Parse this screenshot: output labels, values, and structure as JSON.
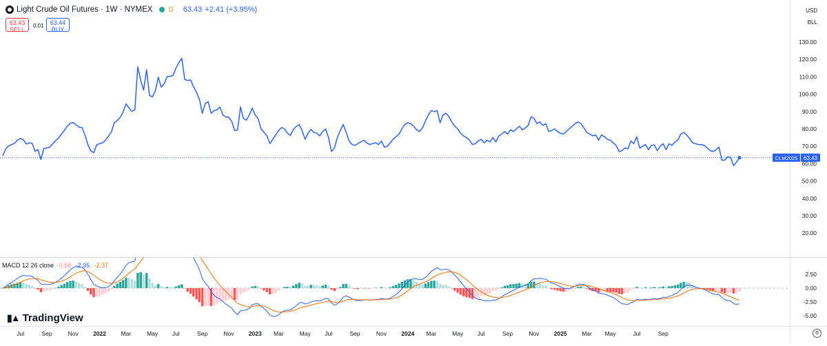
{
  "legend": {
    "title": "Light Crude Oil Futures · 1W · NYMEX",
    "d_badge": "D",
    "price": "63.43",
    "change": "+2.41 (+3.95%)"
  },
  "trade": {
    "sell_price": "63.43",
    "sell_label": "SELL",
    "spread": "0.01",
    "buy_price": "63.44",
    "buy_label": "BUY"
  },
  "top_right": {
    "currency": "USD",
    "unit": "BLL"
  },
  "macd_legend": {
    "label": "MACD 12 26 close",
    "hist": "-0.58",
    "macd": "-2.95",
    "signal": "-2.37"
  },
  "branding": {
    "name": "TradingView"
  },
  "colors": {
    "line": "#2962ff",
    "hist_up_strong": "#26a69a",
    "hist_up_weak": "#b2dfdb",
    "hist_dn_strong": "#ff5252",
    "hist_dn_weak": "#ffcdd2",
    "signal": "#ff6d00",
    "macd": "#2962ff"
  },
  "chart_data": {
    "type": "line",
    "price_axis": {
      "ticks": [
        130,
        120,
        110,
        100,
        90,
        80,
        70,
        60,
        50,
        40,
        30,
        20
      ],
      "labels": [
        "130.00",
        "120.00",
        "110.00",
        "100.00",
        "90.00",
        "80.00",
        "70.00",
        "60.00",
        "50.00",
        "40.00",
        "30.00",
        "20.00"
      ]
    },
    "time_axis": {
      "labels": [
        "Jul",
        "Sep",
        "Nov",
        "2022",
        "Mar",
        "May",
        "Jul",
        "Sep",
        "Nov",
        "2023",
        "Mar",
        "May",
        "Jul",
        "Sep",
        "Nov",
        "2024",
        "Mar",
        "May",
        "Jul",
        "Sep",
        "Nov",
        "2025",
        "Mar",
        "May",
        "Jul",
        "Sep"
      ],
      "bold": [
        "2022",
        "2023",
        "2024",
        "2025"
      ],
      "label_index": [
        6,
        15,
        24,
        33,
        42,
        51,
        59,
        68,
        77,
        86,
        94,
        103,
        111,
        120,
        129,
        138,
        146,
        155,
        163,
        172,
        181,
        190,
        199,
        207,
        216,
        225
      ]
    },
    "last_price": {
      "symbol": "CLM2025",
      "value": "63.43"
    },
    "series_close": [
      64.5,
      68.5,
      70.2,
      71.0,
      71.7,
      73.5,
      74.5,
      73.8,
      71.3,
      72.0,
      71.8,
      67.2,
      68.0,
      62.4,
      68.7,
      69.0,
      69.5,
      71.4,
      73.2,
      74.7,
      77.0,
      79.2,
      81.5,
      83.3,
      83.6,
      82.3,
      81.0,
      80.8,
      76.5,
      71.0,
      67.3,
      66.3,
      70.8,
      71.5,
      72.0,
      73.5,
      75.7,
      78.2,
      83.5,
      84.8,
      86.6,
      89.6,
      94.4,
      92.0,
      90.1,
      91.0,
      115.7,
      107.9,
      102.4,
      114.0,
      99.3,
      98.5,
      102.0,
      109.8,
      104.0,
      106.0,
      110.1,
      110.3,
      110.7,
      115.0,
      118.1,
      120.6,
      108.4,
      107.9,
      108.2,
      104.3,
      101.1,
      97.0,
      89.0,
      94.7,
      95.6,
      89.0,
      90.5,
      91.0,
      92.6,
      88.0,
      86.9,
      86.8,
      84.3,
      79.0,
      79.4,
      92.6,
      86.0,
      85.0,
      88.0,
      92.0,
      88.0,
      86.0,
      80.0,
      78.0,
      76.0,
      71.5,
      74.0,
      76.5,
      79.0,
      80.8,
      80.0,
      77.5,
      76.3,
      79.7,
      81.4,
      82.5,
      79.0,
      74.0,
      77.5,
      79.7,
      78.0,
      77.5,
      76.0,
      78.5,
      80.0,
      75.0,
      67.0,
      69.0,
      75.0,
      79.0,
      82.5,
      78.0,
      73.0,
      71.0,
      70.5,
      71.5,
      72.5,
      73.5,
      72.0,
      71.0,
      71.5,
      72.0,
      71.0,
      73.0,
      69.5,
      70.0,
      72.0,
      74.0,
      75.5,
      77.0,
      80.0,
      82.5,
      83.5,
      83.0,
      81.5,
      79.5,
      78.5,
      80.5,
      84.5,
      88.0,
      90.5,
      90.0,
      90.5,
      83.5,
      88.0,
      89.0,
      87.0,
      84.0,
      81.5,
      80.0,
      77.5,
      76.0,
      75.0,
      73.5,
      71.0,
      71.5,
      73.0,
      74.0,
      72.0,
      73.5,
      72.5,
      75.0,
      72.5,
      76.0,
      77.0,
      78.5,
      77.0,
      79.5,
      78.5,
      80.0,
      81.5,
      79.5,
      80.5,
      82.0,
      87.0,
      86.0,
      83.0,
      84.0,
      82.0,
      83.0,
      78.5,
      79.0,
      80.0,
      78.5,
      77.5,
      77.0,
      78.5,
      80.0,
      81.5,
      83.0,
      84.0,
      83.0,
      80.5,
      78.0,
      77.0,
      76.0,
      76.5,
      73.5,
      76.5,
      75.5,
      74.0,
      73.5,
      72.0,
      70.5,
      67.0,
      67.5,
      69.0,
      68.5,
      73.0,
      71.5,
      75.5,
      69.0,
      70.0,
      71.0,
      68.0,
      70.5,
      70.8,
      67.5,
      70.0,
      71.5,
      68.0,
      71.5,
      70.5,
      72.5,
      73.5,
      77.0,
      78.0,
      76.5,
      74.5,
      72.0,
      71.5,
      71.0,
      71.0,
      70.5,
      69.0,
      67.5,
      67.0,
      68.0,
      69.5,
      62.0,
      62.0,
      64.0,
      63.5,
      58.8,
      61.0,
      63.43
    ]
  }
}
